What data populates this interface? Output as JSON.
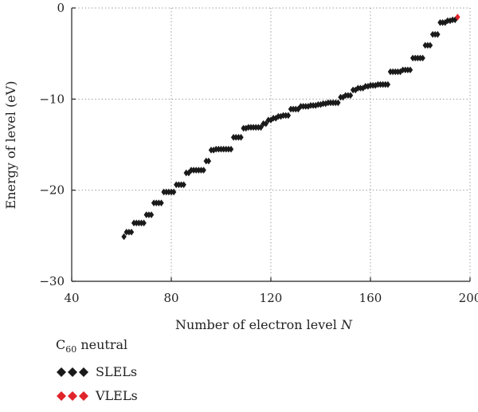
{
  "chart_data": {
    "type": "scatter",
    "title": "",
    "xlabel_text": "Number of electron level ",
    "xlabel_var": "N",
    "ylabel": "Energy of level (eV)",
    "xlim": [
      40,
      200
    ],
    "ylim": [
      -30,
      0
    ],
    "xticks": [
      "40",
      "80",
      "120",
      "160",
      "200"
    ],
    "yticks": [
      "0",
      "−10",
      "−20",
      "−30"
    ],
    "grid": "dotted",
    "legend": {
      "placement": "below",
      "title_main": "C",
      "title_sub": "60",
      "title_rest": " neutral"
    },
    "series": [
      {
        "name": "SLELs",
        "color": "#1a1a1a",
        "x": [
          61,
          62,
          63,
          64,
          65,
          66,
          67,
          68,
          69,
          70,
          71,
          72,
          73,
          74,
          75,
          76,
          77,
          78,
          79,
          80,
          81,
          82,
          83,
          84,
          85,
          86,
          87,
          88,
          89,
          90,
          91,
          92,
          93,
          94,
          95,
          96,
          97,
          98,
          99,
          100,
          101,
          102,
          103,
          104,
          105,
          106,
          107,
          108,
          109,
          110,
          111,
          112,
          113,
          114,
          115,
          116,
          117,
          118,
          119,
          120,
          121,
          122,
          123,
          124,
          125,
          126,
          127,
          128,
          129,
          130,
          131,
          132,
          133,
          134,
          135,
          136,
          137,
          138,
          139,
          140,
          141,
          142,
          143,
          144,
          145,
          146,
          147,
          148,
          149,
          150,
          151,
          152,
          153,
          154,
          155,
          156,
          157,
          158,
          159,
          160,
          161,
          162,
          163,
          164,
          165,
          166,
          167,
          168,
          169,
          170,
          171,
          172,
          173,
          174,
          175,
          176,
          177,
          178,
          179,
          180,
          181,
          182,
          183,
          184,
          185,
          186,
          187,
          188,
          189,
          190,
          191,
          192,
          193,
          194
        ],
        "y": [
          -25.1,
          -24.6,
          -24.6,
          -24.6,
          -23.6,
          -23.6,
          -23.6,
          -23.6,
          -23.6,
          -22.7,
          -22.7,
          -22.7,
          -21.4,
          -21.4,
          -21.4,
          -21.4,
          -20.2,
          -20.2,
          -20.2,
          -20.2,
          -20.2,
          -19.4,
          -19.4,
          -19.4,
          -19.4,
          -18.1,
          -18.1,
          -17.8,
          -17.8,
          -17.8,
          -17.8,
          -17.8,
          -17.8,
          -16.8,
          -16.8,
          -15.6,
          -15.6,
          -15.5,
          -15.5,
          -15.5,
          -15.5,
          -15.5,
          -15.5,
          -15.5,
          -14.2,
          -14.2,
          -14.2,
          -14.2,
          -13.2,
          -13.2,
          -13.1,
          -13.1,
          -13.1,
          -13.1,
          -13.1,
          -13.1,
          -12.7,
          -12.7,
          -12.3,
          -12.3,
          -12.1,
          -12.1,
          -11.9,
          -11.9,
          -11.8,
          -11.8,
          -11.8,
          -11.1,
          -11.1,
          -11.1,
          -11.1,
          -10.8,
          -10.8,
          -10.8,
          -10.8,
          -10.7,
          -10.7,
          -10.7,
          -10.6,
          -10.6,
          -10.5,
          -10.5,
          -10.4,
          -10.4,
          -10.4,
          -10.4,
          -10.4,
          -9.8,
          -9.8,
          -9.6,
          -9.6,
          -9.6,
          -9.0,
          -9.0,
          -8.8,
          -8.8,
          -8.8,
          -8.6,
          -8.6,
          -8.5,
          -8.5,
          -8.5,
          -8.4,
          -8.4,
          -8.4,
          -8.4,
          -8.4,
          -7.0,
          -7.0,
          -7.0,
          -7.0,
          -7.0,
          -6.8,
          -6.8,
          -6.8,
          -6.8,
          -5.5,
          -5.5,
          -5.5,
          -5.5,
          -5.5,
          -4.1,
          -4.1,
          -4.1,
          -2.9,
          -2.9,
          -2.9,
          -1.6,
          -1.6,
          -1.6,
          -1.4,
          -1.4,
          -1.3,
          -1.3
        ]
      },
      {
        "name": "VLELs",
        "color": "#e0242b",
        "x": [
          195
        ],
        "y": [
          -1.0
        ]
      }
    ]
  }
}
